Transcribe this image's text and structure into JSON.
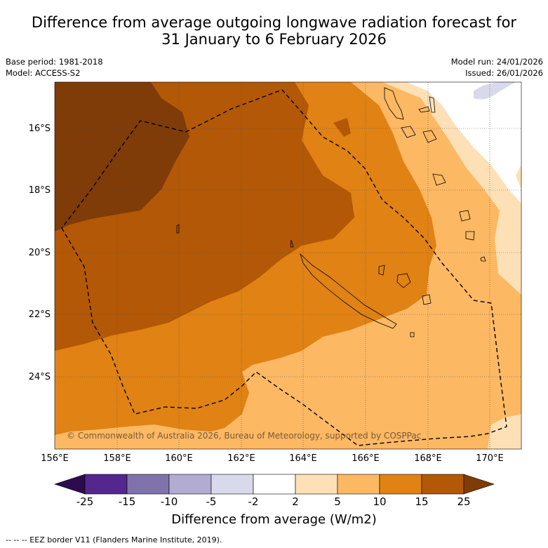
{
  "title": {
    "line1": "Difference from average outgoing longwave radiation forecast for",
    "line2": "31 January to 6 February 2026"
  },
  "meta_left": {
    "base_period": "Base period: 1981-2018",
    "model": "Model: ACCESS-S2"
  },
  "meta_right": {
    "model_run": "Model run: 24/01/2026",
    "issued": "Issued: 26/01/2026"
  },
  "lat_labels": [
    "16°S",
    "18°S",
    "20°S",
    "22°S",
    "24°S"
  ],
  "lon_labels": [
    "156°E",
    "158°E",
    "160°E",
    "162°E",
    "164°E",
    "166°E",
    "168°E",
    "170°E"
  ],
  "copyright": "© Commonwealth of Australia 2026, Bureau of Meteorology, supported by COSPPac",
  "colorbar": {
    "ticks": [
      "-25",
      "-15",
      "-10",
      "-5",
      "-2",
      "2",
      "5",
      "10",
      "15",
      "25"
    ],
    "colors": {
      "lt_neg25": "#2e0a4f",
      "neg25_neg15": "#54278f",
      "neg15_neg10": "#8073ac",
      "neg10_neg5": "#b2abd2",
      "neg5_neg2": "#d8daeb",
      "neg2_2": "#ffffff",
      "2_5": "#fee0b6",
      "5_10": "#fdb863",
      "10_15": "#e08214",
      "15_25": "#b35806",
      "gt_25": "#7f3b08"
    },
    "label": "Difference from average (W/m2)"
  },
  "footer": "--  --  -- EEZ border V11 (Flanders Marine Institute, 2019)."
}
